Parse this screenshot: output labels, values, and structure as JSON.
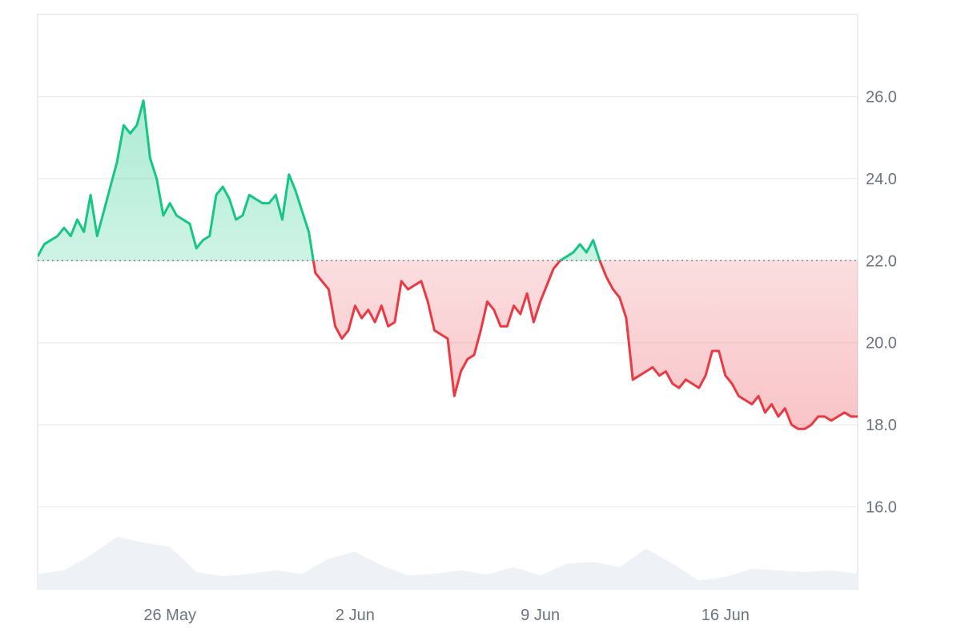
{
  "chart_data": {
    "type": "area",
    "baseline": 22.0,
    "ylim": [
      14.0,
      28.0
    ],
    "y_ticks": [
      "16.0",
      "18.0",
      "20.0",
      "22.0",
      "24.0",
      "26.0"
    ],
    "x_ticks": [
      {
        "label": "26 May",
        "date": "2024-05-26"
      },
      {
        "label": "2 Jun",
        "date": "2024-06-02"
      },
      {
        "label": "9 Jun",
        "date": "2024-06-09"
      },
      {
        "label": "16 Jun",
        "date": "2024-06-16"
      }
    ],
    "x_range": [
      "2024-05-21",
      "2024-06-21"
    ],
    "colors": {
      "up": "#16c784",
      "down": "#ea3943",
      "grid": "#e5e7eb",
      "volume": "#eef1f5"
    },
    "series": [
      {
        "values": [
          [
            "2024-05-21T00:00",
            22.1
          ],
          [
            "2024-05-21T06:00",
            22.4
          ],
          [
            "2024-05-21T12:00",
            22.5
          ],
          [
            "2024-05-21T18:00",
            22.6
          ],
          [
            "2024-05-22T00:00",
            22.8
          ],
          [
            "2024-05-22T06:00",
            22.6
          ],
          [
            "2024-05-22T12:00",
            23.0
          ],
          [
            "2024-05-22T18:00",
            22.7
          ],
          [
            "2024-05-23T00:00",
            23.6
          ],
          [
            "2024-05-23T06:00",
            22.6
          ],
          [
            "2024-05-23T12:00",
            23.2
          ],
          [
            "2024-05-23T18:00",
            23.8
          ],
          [
            "2024-05-24T00:00",
            24.4
          ],
          [
            "2024-05-24T06:00",
            25.3
          ],
          [
            "2024-05-24T12:00",
            25.1
          ],
          [
            "2024-05-24T18:00",
            25.3
          ],
          [
            "2024-05-25T00:00",
            25.9
          ],
          [
            "2024-05-25T06:00",
            24.5
          ],
          [
            "2024-05-25T12:00",
            24.0
          ],
          [
            "2024-05-25T18:00",
            23.1
          ],
          [
            "2024-05-26T00:00",
            23.4
          ],
          [
            "2024-05-26T06:00",
            23.1
          ],
          [
            "2024-05-26T12:00",
            23.0
          ],
          [
            "2024-05-26T18:00",
            22.9
          ],
          [
            "2024-05-27T00:00",
            22.3
          ],
          [
            "2024-05-27T06:00",
            22.5
          ],
          [
            "2024-05-27T12:00",
            22.6
          ],
          [
            "2024-05-27T18:00",
            23.6
          ],
          [
            "2024-05-28T00:00",
            23.8
          ],
          [
            "2024-05-28T06:00",
            23.5
          ],
          [
            "2024-05-28T12:00",
            23.0
          ],
          [
            "2024-05-28T18:00",
            23.1
          ],
          [
            "2024-05-29T00:00",
            23.6
          ],
          [
            "2024-05-29T06:00",
            23.5
          ],
          [
            "2024-05-29T12:00",
            23.4
          ],
          [
            "2024-05-29T18:00",
            23.4
          ],
          [
            "2024-05-30T00:00",
            23.6
          ],
          [
            "2024-05-30T06:00",
            23.0
          ],
          [
            "2024-05-30T12:00",
            24.1
          ],
          [
            "2024-05-30T18:00",
            23.7
          ],
          [
            "2024-05-31T00:00",
            23.2
          ],
          [
            "2024-05-31T06:00",
            22.7
          ],
          [
            "2024-05-31T12:00",
            21.7
          ],
          [
            "2024-05-31T18:00",
            21.5
          ],
          [
            "2024-06-01T00:00",
            21.3
          ],
          [
            "2024-06-01T06:00",
            20.4
          ],
          [
            "2024-06-01T12:00",
            20.1
          ],
          [
            "2024-06-01T18:00",
            20.3
          ],
          [
            "2024-06-02T00:00",
            20.9
          ],
          [
            "2024-06-02T06:00",
            20.6
          ],
          [
            "2024-06-02T12:00",
            20.8
          ],
          [
            "2024-06-02T18:00",
            20.5
          ],
          [
            "2024-06-03T00:00",
            20.9
          ],
          [
            "2024-06-03T06:00",
            20.4
          ],
          [
            "2024-06-03T12:00",
            20.5
          ],
          [
            "2024-06-03T18:00",
            21.5
          ],
          [
            "2024-06-04T00:00",
            21.3
          ],
          [
            "2024-06-04T06:00",
            21.4
          ],
          [
            "2024-06-04T12:00",
            21.5
          ],
          [
            "2024-06-04T18:00",
            21.0
          ],
          [
            "2024-06-05T00:00",
            20.3
          ],
          [
            "2024-06-05T06:00",
            20.2
          ],
          [
            "2024-06-05T12:00",
            20.1
          ],
          [
            "2024-06-05T18:00",
            18.7
          ],
          [
            "2024-06-06T00:00",
            19.3
          ],
          [
            "2024-06-06T06:00",
            19.6
          ],
          [
            "2024-06-06T12:00",
            19.7
          ],
          [
            "2024-06-06T18:00",
            20.3
          ],
          [
            "2024-06-07T00:00",
            21.0
          ],
          [
            "2024-06-07T06:00",
            20.8
          ],
          [
            "2024-06-07T12:00",
            20.4
          ],
          [
            "2024-06-07T18:00",
            20.4
          ],
          [
            "2024-06-08T00:00",
            20.9
          ],
          [
            "2024-06-08T06:00",
            20.7
          ],
          [
            "2024-06-08T12:00",
            21.2
          ],
          [
            "2024-06-08T18:00",
            20.5
          ],
          [
            "2024-06-09T00:00",
            21.0
          ],
          [
            "2024-06-09T06:00",
            21.4
          ],
          [
            "2024-06-09T12:00",
            21.8
          ],
          [
            "2024-06-09T18:00",
            22.0
          ],
          [
            "2024-06-10T00:00",
            22.1
          ],
          [
            "2024-06-10T06:00",
            22.2
          ],
          [
            "2024-06-10T12:00",
            22.4
          ],
          [
            "2024-06-10T18:00",
            22.2
          ],
          [
            "2024-06-11T00:00",
            22.5
          ],
          [
            "2024-06-11T06:00",
            22.0
          ],
          [
            "2024-06-11T12:00",
            21.6
          ],
          [
            "2024-06-11T18:00",
            21.3
          ],
          [
            "2024-06-12T00:00",
            21.1
          ],
          [
            "2024-06-12T06:00",
            20.6
          ],
          [
            "2024-06-12T12:00",
            19.1
          ],
          [
            "2024-06-12T18:00",
            19.2
          ],
          [
            "2024-06-13T00:00",
            19.3
          ],
          [
            "2024-06-13T06:00",
            19.4
          ],
          [
            "2024-06-13T12:00",
            19.2
          ],
          [
            "2024-06-13T18:00",
            19.3
          ],
          [
            "2024-06-14T00:00",
            19.0
          ],
          [
            "2024-06-14T06:00",
            18.9
          ],
          [
            "2024-06-14T12:00",
            19.1
          ],
          [
            "2024-06-14T18:00",
            19.0
          ],
          [
            "2024-06-15T00:00",
            18.9
          ],
          [
            "2024-06-15T06:00",
            19.2
          ],
          [
            "2024-06-15T12:00",
            19.8
          ],
          [
            "2024-06-15T18:00",
            19.8
          ],
          [
            "2024-06-16T00:00",
            19.2
          ],
          [
            "2024-06-16T06:00",
            19.0
          ],
          [
            "2024-06-16T12:00",
            18.7
          ],
          [
            "2024-06-16T18:00",
            18.6
          ],
          [
            "2024-06-17T00:00",
            18.5
          ],
          [
            "2024-06-17T06:00",
            18.7
          ],
          [
            "2024-06-17T12:00",
            18.3
          ],
          [
            "2024-06-17T18:00",
            18.5
          ],
          [
            "2024-06-18T00:00",
            18.2
          ],
          [
            "2024-06-18T06:00",
            18.4
          ],
          [
            "2024-06-18T12:00",
            18.0
          ],
          [
            "2024-06-18T18:00",
            17.9
          ],
          [
            "2024-06-19T00:00",
            17.9
          ],
          [
            "2024-06-19T06:00",
            18.0
          ],
          [
            "2024-06-19T12:00",
            18.2
          ],
          [
            "2024-06-19T18:00",
            18.2
          ],
          [
            "2024-06-20T00:00",
            18.1
          ],
          [
            "2024-06-20T06:00",
            18.2
          ],
          [
            "2024-06-20T12:00",
            18.3
          ],
          [
            "2024-06-20T18:00",
            18.2
          ],
          [
            "2024-06-21T00:00",
            18.2
          ]
        ]
      }
    ],
    "volume": [
      [
        "2024-05-21",
        0.18
      ],
      [
        "2024-05-22",
        0.22
      ],
      [
        "2024-05-23",
        0.4
      ],
      [
        "2024-05-24",
        0.62
      ],
      [
        "2024-05-25",
        0.55
      ],
      [
        "2024-05-26",
        0.5
      ],
      [
        "2024-05-27",
        0.2
      ],
      [
        "2024-05-28",
        0.15
      ],
      [
        "2024-05-29",
        0.18
      ],
      [
        "2024-05-30",
        0.22
      ],
      [
        "2024-05-31",
        0.18
      ],
      [
        "2024-06-01",
        0.36
      ],
      [
        "2024-06-02",
        0.44
      ],
      [
        "2024-06-03",
        0.28
      ],
      [
        "2024-06-04",
        0.16
      ],
      [
        "2024-06-05",
        0.18
      ],
      [
        "2024-06-06",
        0.22
      ],
      [
        "2024-06-07",
        0.17
      ],
      [
        "2024-06-08",
        0.26
      ],
      [
        "2024-06-09",
        0.16
      ],
      [
        "2024-06-10",
        0.3
      ],
      [
        "2024-06-11",
        0.32
      ],
      [
        "2024-06-12",
        0.26
      ],
      [
        "2024-06-13",
        0.48
      ],
      [
        "2024-06-14",
        0.3
      ],
      [
        "2024-06-15",
        0.1
      ],
      [
        "2024-06-16",
        0.14
      ],
      [
        "2024-06-17",
        0.24
      ],
      [
        "2024-06-18",
        0.22
      ],
      [
        "2024-06-19",
        0.2
      ],
      [
        "2024-06-20",
        0.22
      ],
      [
        "2024-06-21",
        0.18
      ]
    ]
  }
}
